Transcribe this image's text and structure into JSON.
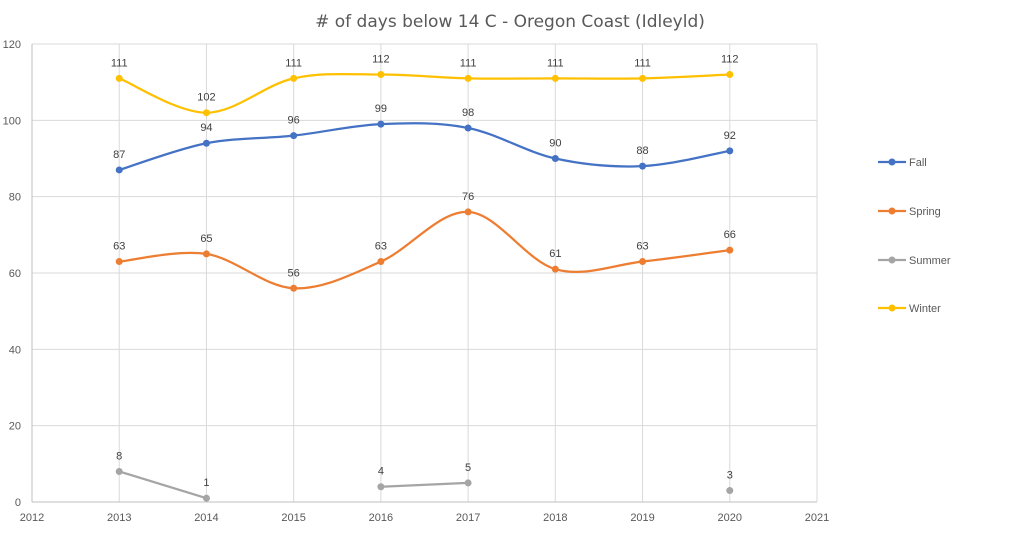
{
  "chart_data": {
    "type": "line",
    "title": "# of days below 14 C - Oregon Coast (Idleyld)",
    "xlabel": "",
    "ylabel": "",
    "xlim": [
      2012,
      2021
    ],
    "ylim": [
      0,
      120
    ],
    "x_ticks": [
      "2012",
      "2013",
      "2014",
      "2015",
      "2016",
      "2017",
      "2018",
      "2019",
      "2020",
      "2021"
    ],
    "y_ticks": [
      "0",
      "20",
      "40",
      "60",
      "80",
      "100",
      "120"
    ],
    "grid": true,
    "legend_position": "right",
    "x": [
      2013,
      2014,
      2015,
      2016,
      2017,
      2018,
      2019,
      2020
    ],
    "series": [
      {
        "name": "Fall",
        "color": "#4472c4",
        "smooth": true,
        "values": [
          87,
          94,
          96,
          99,
          98,
          90,
          88,
          92
        ]
      },
      {
        "name": "Spring",
        "color": "#ed7d31",
        "smooth": true,
        "values": [
          63,
          65,
          56,
          63,
          76,
          61,
          63,
          66
        ]
      },
      {
        "name": "Summer",
        "color": "#a5a5a5",
        "smooth": false,
        "values": [
          8,
          1,
          null,
          4,
          5,
          null,
          null,
          3
        ]
      },
      {
        "name": "Winter",
        "color": "#ffc000",
        "smooth": true,
        "values": [
          111,
          102,
          111,
          112,
          111,
          111,
          111,
          112
        ]
      }
    ]
  }
}
